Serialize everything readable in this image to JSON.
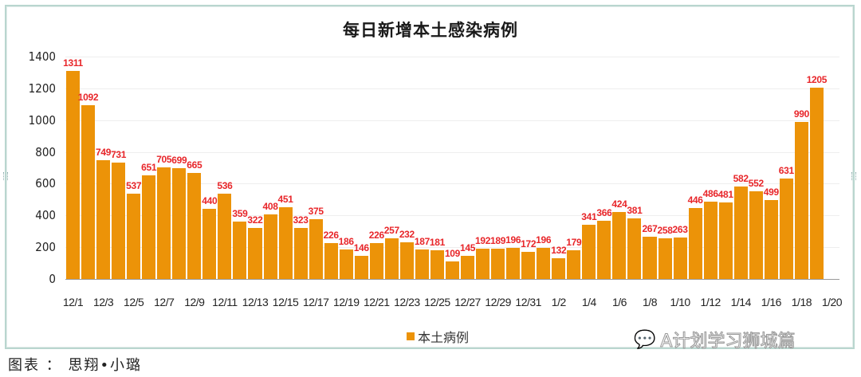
{
  "chart_data": {
    "type": "bar",
    "title": "每日新增本土感染病例",
    "xlabel": "",
    "ylabel": "",
    "ylim": [
      0,
      1400
    ],
    "yticks": [
      0,
      200,
      400,
      600,
      800,
      1000,
      1200,
      1400
    ],
    "grid": true,
    "legend_position": "bottom",
    "categories": [
      "12/1",
      "12/2",
      "12/3",
      "12/4",
      "12/5",
      "12/6",
      "12/7",
      "12/8",
      "12/9",
      "12/10",
      "12/11",
      "12/12",
      "12/13",
      "12/14",
      "12/15",
      "12/16",
      "12/17",
      "12/18",
      "12/19",
      "12/20",
      "12/21",
      "12/22",
      "12/23",
      "12/24",
      "12/25",
      "12/26",
      "12/27",
      "12/28",
      "12/29",
      "12/30",
      "12/31",
      "1/1",
      "1/2",
      "1/3",
      "1/4",
      "1/5",
      "1/6",
      "1/7",
      "1/8",
      "1/9",
      "1/10",
      "1/11",
      "1/12",
      "1/13",
      "1/14",
      "1/15",
      "1/16",
      "1/17",
      "1/18",
      "1/19",
      "1/20"
    ],
    "xtick_labels": [
      "12/1",
      "12/3",
      "12/5",
      "12/7",
      "12/9",
      "12/11",
      "12/13",
      "12/15",
      "12/17",
      "12/19",
      "12/21",
      "12/23",
      "12/25",
      "12/27",
      "12/29",
      "12/31",
      "1/2",
      "1/4",
      "1/6",
      "1/8",
      "1/10",
      "1/12",
      "1/14",
      "1/16",
      "1/18",
      "1/20"
    ],
    "series": [
      {
        "name": "本土病例",
        "color": "#ec9308",
        "label_color": "#e8262a",
        "values": [
          1311,
          1092,
          749,
          731,
          537,
          651,
          705,
          699,
          665,
          440,
          536,
          359,
          322,
          408,
          451,
          323,
          375,
          226,
          186,
          146,
          226,
          257,
          232,
          187,
          181,
          109,
          145,
          192,
          189,
          196,
          172,
          196,
          132,
          179,
          341,
          366,
          424,
          381,
          267,
          258,
          263,
          446,
          486,
          481,
          582,
          552,
          499,
          631,
          990,
          1205,
          null
        ]
      }
    ]
  },
  "legend": {
    "label": "本土病例"
  },
  "watermark": {
    "text": "A计划学习狮城篇"
  },
  "caption": {
    "text": "图表 ： 思翔•小璐"
  }
}
